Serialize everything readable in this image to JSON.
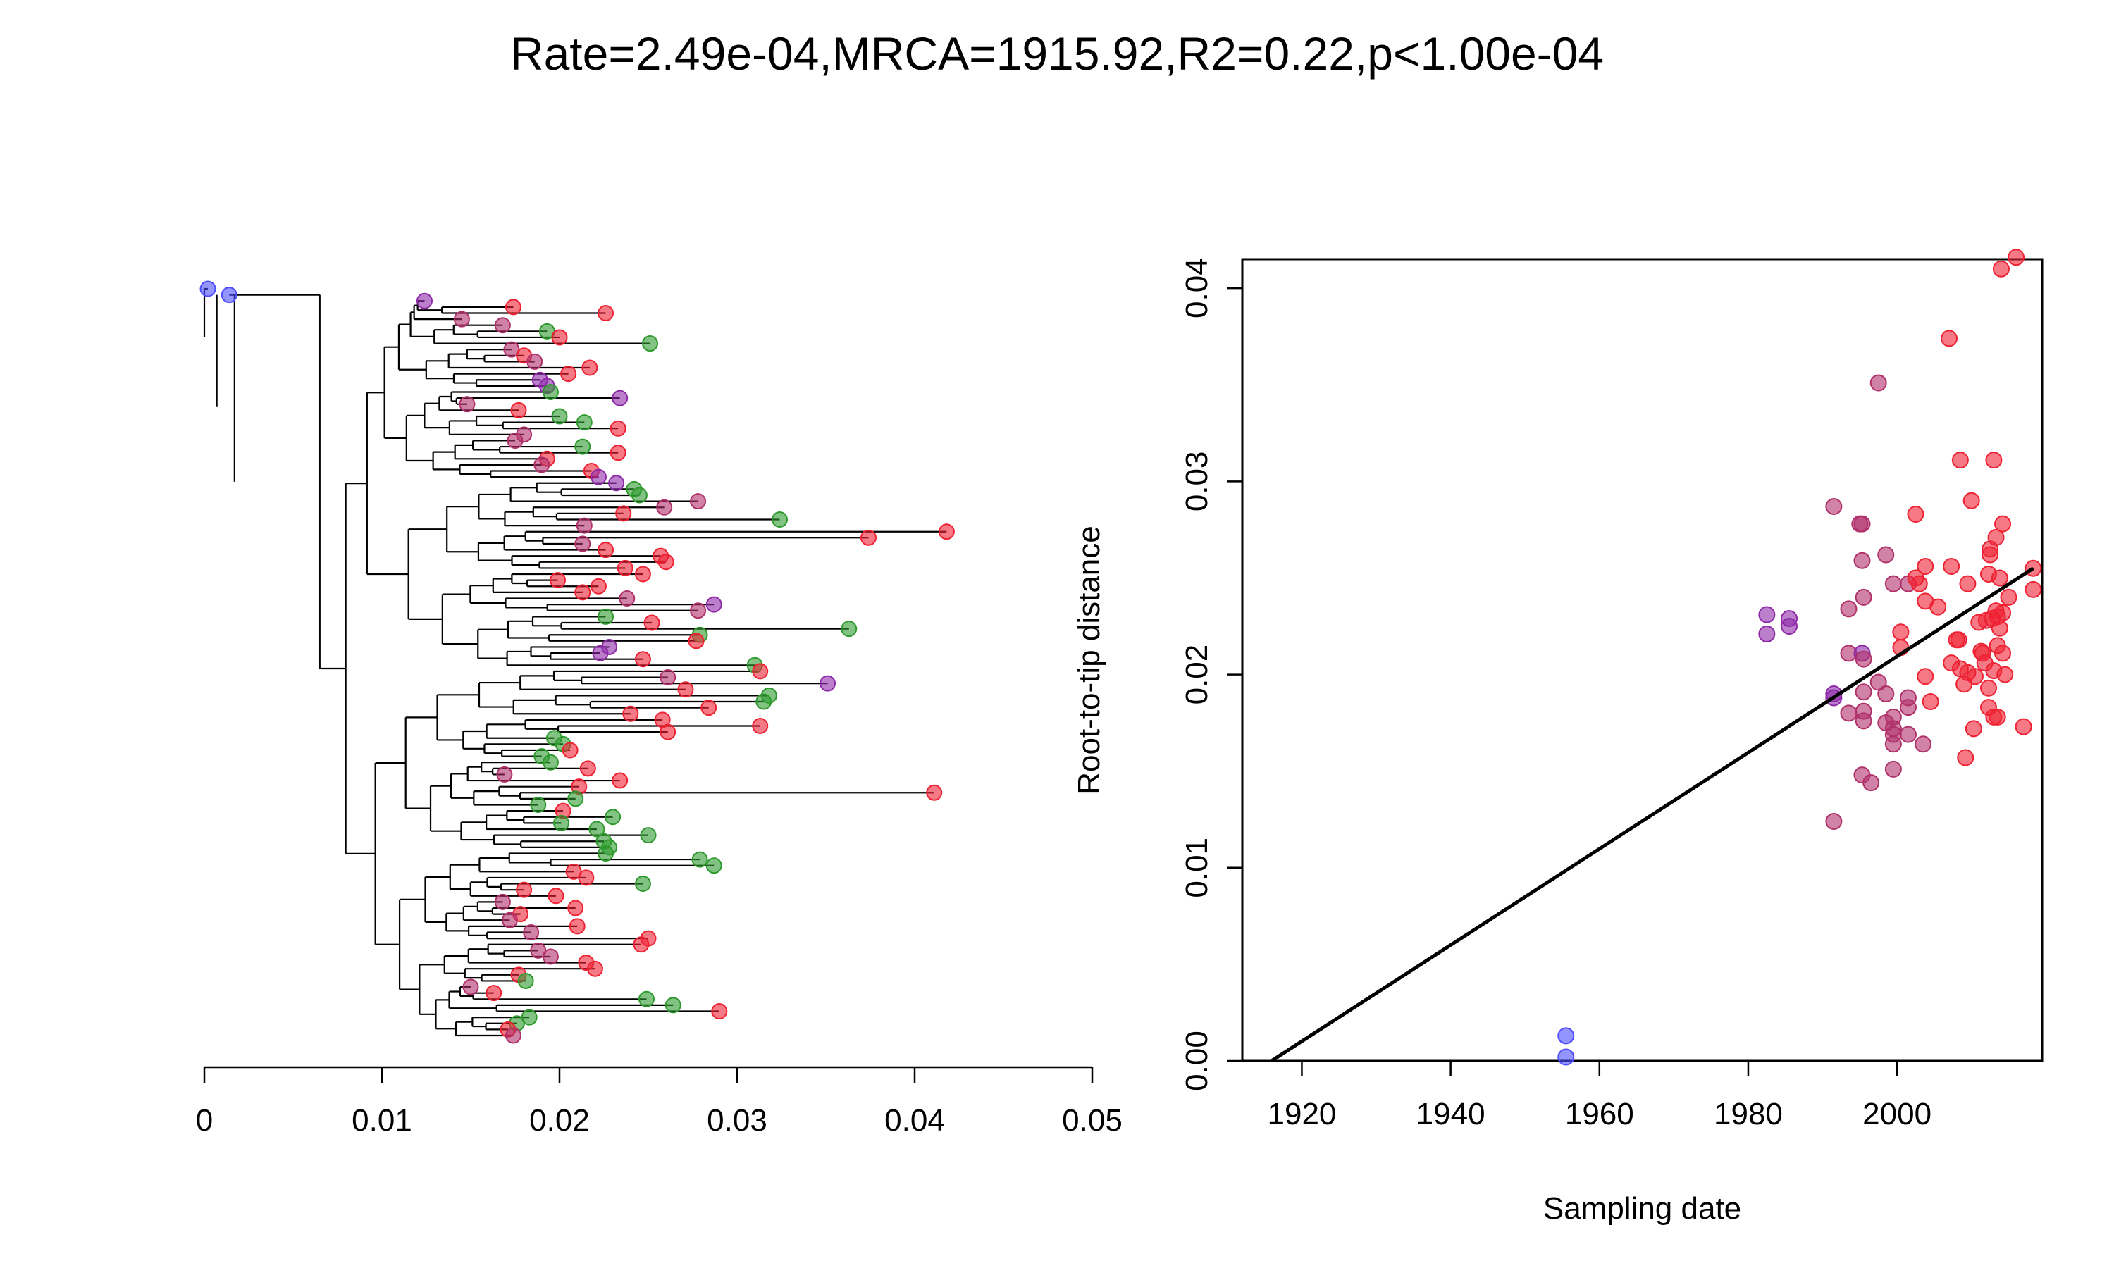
{
  "title": "Rate=2.49e-04,MRCA=1915.92,R2=0.22,p<1.00e-04",
  "colors": {
    "blue": "#4d4dff",
    "green": "#2e9a2e",
    "purple": "#8e2aa8",
    "magenta": "#b0306a",
    "red": "#ee2233"
  },
  "chart_data": [
    {
      "type": "tree",
      "xlim": [
        0,
        0.05
      ],
      "xticks": [
        "0",
        "0.01",
        "0.02",
        "0.03",
        "0.04",
        "0.05"
      ],
      "tips": [
        {
          "x": 0.0002,
          "c": "blue"
        },
        {
          "x": 0.0014,
          "c": "blue"
        },
        {
          "x": 0.0124,
          "c": "purple"
        },
        {
          "x": 0.0174,
          "c": "red"
        },
        {
          "x": 0.0226,
          "c": "red"
        },
        {
          "x": 0.0145,
          "c": "magenta"
        },
        {
          "x": 0.0168,
          "c": "magenta"
        },
        {
          "x": 0.0193,
          "c": "green"
        },
        {
          "x": 0.02,
          "c": "red"
        },
        {
          "x": 0.0251,
          "c": "green"
        },
        {
          "x": 0.0173,
          "c": "magenta"
        },
        {
          "x": 0.018,
          "c": "red"
        },
        {
          "x": 0.0186,
          "c": "magenta"
        },
        {
          "x": 0.0217,
          "c": "red"
        },
        {
          "x": 0.0205,
          "c": "red"
        },
        {
          "x": 0.0189,
          "c": "purple"
        },
        {
          "x": 0.0193,
          "c": "purple"
        },
        {
          "x": 0.0195,
          "c": "green"
        },
        {
          "x": 0.0234,
          "c": "purple"
        },
        {
          "x": 0.0148,
          "c": "magenta"
        },
        {
          "x": 0.0177,
          "c": "red"
        },
        {
          "x": 0.02,
          "c": "green"
        },
        {
          "x": 0.0214,
          "c": "green"
        },
        {
          "x": 0.0233,
          "c": "red"
        },
        {
          "x": 0.018,
          "c": "magenta"
        },
        {
          "x": 0.0175,
          "c": "magenta"
        },
        {
          "x": 0.0213,
          "c": "green"
        },
        {
          "x": 0.0233,
          "c": "red"
        },
        {
          "x": 0.0193,
          "c": "red"
        },
        {
          "x": 0.019,
          "c": "magenta"
        },
        {
          "x": 0.0218,
          "c": "red"
        },
        {
          "x": 0.0222,
          "c": "purple"
        },
        {
          "x": 0.0232,
          "c": "purple"
        },
        {
          "x": 0.0242,
          "c": "green"
        },
        {
          "x": 0.0245,
          "c": "green"
        },
        {
          "x": 0.0278,
          "c": "magenta"
        },
        {
          "x": 0.0259,
          "c": "magenta"
        },
        {
          "x": 0.0236,
          "c": "red"
        },
        {
          "x": 0.0324,
          "c": "green"
        },
        {
          "x": 0.0214,
          "c": "magenta"
        },
        {
          "x": 0.0418,
          "c": "red"
        },
        {
          "x": 0.0374,
          "c": "red"
        },
        {
          "x": 0.0213,
          "c": "magenta"
        },
        {
          "x": 0.0226,
          "c": "red"
        },
        {
          "x": 0.0257,
          "c": "red"
        },
        {
          "x": 0.026,
          "c": "red"
        },
        {
          "x": 0.0237,
          "c": "red"
        },
        {
          "x": 0.0247,
          "c": "red"
        },
        {
          "x": 0.0199,
          "c": "red"
        },
        {
          "x": 0.0222,
          "c": "red"
        },
        {
          "x": 0.0213,
          "c": "red"
        },
        {
          "x": 0.0238,
          "c": "magenta"
        },
        {
          "x": 0.0287,
          "c": "purple"
        },
        {
          "x": 0.0278,
          "c": "magenta"
        },
        {
          "x": 0.0226,
          "c": "green"
        },
        {
          "x": 0.0252,
          "c": "red"
        },
        {
          "x": 0.0363,
          "c": "green"
        },
        {
          "x": 0.0279,
          "c": "green"
        },
        {
          "x": 0.0277,
          "c": "red"
        },
        {
          "x": 0.0228,
          "c": "purple"
        },
        {
          "x": 0.0223,
          "c": "purple"
        },
        {
          "x": 0.0247,
          "c": "red"
        },
        {
          "x": 0.031,
          "c": "green"
        },
        {
          "x": 0.0313,
          "c": "red"
        },
        {
          "x": 0.0261,
          "c": "magenta"
        },
        {
          "x": 0.0351,
          "c": "purple"
        },
        {
          "x": 0.0271,
          "c": "red"
        },
        {
          "x": 0.0318,
          "c": "green"
        },
        {
          "x": 0.0315,
          "c": "green"
        },
        {
          "x": 0.0284,
          "c": "red"
        },
        {
          "x": 0.024,
          "c": "red"
        },
        {
          "x": 0.0258,
          "c": "red"
        },
        {
          "x": 0.0313,
          "c": "red"
        },
        {
          "x": 0.0261,
          "c": "red"
        },
        {
          "x": 0.0197,
          "c": "green"
        },
        {
          "x": 0.0202,
          "c": "green"
        },
        {
          "x": 0.0206,
          "c": "red"
        },
        {
          "x": 0.019,
          "c": "green"
        },
        {
          "x": 0.0195,
          "c": "green"
        },
        {
          "x": 0.0216,
          "c": "red"
        },
        {
          "x": 0.0169,
          "c": "magenta"
        },
        {
          "x": 0.0234,
          "c": "red"
        },
        {
          "x": 0.0211,
          "c": "red"
        },
        {
          "x": 0.0411,
          "c": "red"
        },
        {
          "x": 0.0209,
          "c": "green"
        },
        {
          "x": 0.0188,
          "c": "green"
        },
        {
          "x": 0.0202,
          "c": "red"
        },
        {
          "x": 0.023,
          "c": "green"
        },
        {
          "x": 0.0201,
          "c": "green"
        },
        {
          "x": 0.0221,
          "c": "green"
        },
        {
          "x": 0.025,
          "c": "green"
        },
        {
          "x": 0.0225,
          "c": "green"
        },
        {
          "x": 0.0228,
          "c": "green"
        },
        {
          "x": 0.0226,
          "c": "green"
        },
        {
          "x": 0.0279,
          "c": "green"
        },
        {
          "x": 0.0287,
          "c": "green"
        },
        {
          "x": 0.0208,
          "c": "red"
        },
        {
          "x": 0.0215,
          "c": "red"
        },
        {
          "x": 0.0247,
          "c": "green"
        },
        {
          "x": 0.018,
          "c": "red"
        },
        {
          "x": 0.0198,
          "c": "red"
        },
        {
          "x": 0.0168,
          "c": "magenta"
        },
        {
          "x": 0.0209,
          "c": "red"
        },
        {
          "x": 0.0178,
          "c": "red"
        },
        {
          "x": 0.0172,
          "c": "magenta"
        },
        {
          "x": 0.021,
          "c": "red"
        },
        {
          "x": 0.0184,
          "c": "magenta"
        },
        {
          "x": 0.025,
          "c": "red"
        },
        {
          "x": 0.0246,
          "c": "red"
        },
        {
          "x": 0.0188,
          "c": "magenta"
        },
        {
          "x": 0.0195,
          "c": "magenta"
        },
        {
          "x": 0.0215,
          "c": "red"
        },
        {
          "x": 0.022,
          "c": "red"
        },
        {
          "x": 0.0177,
          "c": "red"
        },
        {
          "x": 0.0181,
          "c": "green"
        },
        {
          "x": 0.015,
          "c": "magenta"
        },
        {
          "x": 0.0163,
          "c": "red"
        },
        {
          "x": 0.0249,
          "c": "green"
        },
        {
          "x": 0.0264,
          "c": "green"
        },
        {
          "x": 0.029,
          "c": "red"
        },
        {
          "x": 0.0183,
          "c": "green"
        },
        {
          "x": 0.0176,
          "c": "green"
        },
        {
          "x": 0.0171,
          "c": "red"
        },
        {
          "x": 0.0174,
          "c": "magenta"
        }
      ]
    },
    {
      "type": "scatter",
      "xlabel": "Sampling date",
      "ylabel": "Root-to-tip distance",
      "xlim": [
        1912,
        2019.5
      ],
      "ylim": [
        0,
        0.0415
      ],
      "xticks": [
        1920,
        1940,
        1960,
        1980,
        2000
      ],
      "yticks": [
        0.0,
        0.01,
        0.02,
        0.03,
        0.04
      ],
      "ytick_labels": [
        "0.00",
        "0.01",
        "0.02",
        "0.03",
        "0.04"
      ],
      "regression": {
        "x0": 1915.92,
        "y0": 0.0,
        "x1": 2018.3,
        "y1": 0.0255
      },
      "points": [
        {
          "x": 1955.5,
          "y": 0.0013,
          "c": "blue"
        },
        {
          "x": 1955.5,
          "y": 0.0002,
          "c": "blue"
        },
        {
          "x": 1982.5,
          "y": 0.0231,
          "c": "purple"
        },
        {
          "x": 1982.5,
          "y": 0.0221,
          "c": "purple"
        },
        {
          "x": 1985.5,
          "y": 0.0229,
          "c": "purple"
        },
        {
          "x": 1985.5,
          "y": 0.0225,
          "c": "purple"
        },
        {
          "x": 1991.5,
          "y": 0.0287,
          "c": "magenta"
        },
        {
          "x": 1991.5,
          "y": 0.019,
          "c": "purple"
        },
        {
          "x": 1991.5,
          "y": 0.0188,
          "c": "purple"
        },
        {
          "x": 1991.5,
          "y": 0.0124,
          "c": "magenta"
        },
        {
          "x": 1993.5,
          "y": 0.0234,
          "c": "magenta"
        },
        {
          "x": 1993.5,
          "y": 0.0211,
          "c": "magenta"
        },
        {
          "x": 1993.5,
          "y": 0.018,
          "c": "magenta"
        },
        {
          "x": 1995.0,
          "y": 0.0278,
          "c": "magenta"
        },
        {
          "x": 1995.3,
          "y": 0.0278,
          "c": "magenta"
        },
        {
          "x": 1995.3,
          "y": 0.0259,
          "c": "magenta"
        },
        {
          "x": 1995.5,
          "y": 0.024,
          "c": "magenta"
        },
        {
          "x": 1995.3,
          "y": 0.0211,
          "c": "purple"
        },
        {
          "x": 1995.5,
          "y": 0.0208,
          "c": "magenta"
        },
        {
          "x": 1995.5,
          "y": 0.0191,
          "c": "magenta"
        },
        {
          "x": 1995.5,
          "y": 0.0176,
          "c": "magenta"
        },
        {
          "x": 1995.5,
          "y": 0.0181,
          "c": "magenta"
        },
        {
          "x": 1995.3,
          "y": 0.0148,
          "c": "magenta"
        },
        {
          "x": 1996.5,
          "y": 0.0144,
          "c": "magenta"
        },
        {
          "x": 1997.5,
          "y": 0.0351,
          "c": "magenta"
        },
        {
          "x": 1997.5,
          "y": 0.0196,
          "c": "magenta"
        },
        {
          "x": 1998.5,
          "y": 0.0262,
          "c": "magenta"
        },
        {
          "x": 1998.5,
          "y": 0.019,
          "c": "magenta"
        },
        {
          "x": 1998.5,
          "y": 0.0175,
          "c": "magenta"
        },
        {
          "x": 1999.5,
          "y": 0.0247,
          "c": "magenta"
        },
        {
          "x": 1999.5,
          "y": 0.0178,
          "c": "magenta"
        },
        {
          "x": 1999.5,
          "y": 0.0172,
          "c": "magenta"
        },
        {
          "x": 1999.5,
          "y": 0.0169,
          "c": "magenta"
        },
        {
          "x": 1999.5,
          "y": 0.0164,
          "c": "magenta"
        },
        {
          "x": 1999.5,
          "y": 0.0151,
          "c": "magenta"
        },
        {
          "x": 2000.5,
          "y": 0.0222,
          "c": "red"
        },
        {
          "x": 2000.5,
          "y": 0.0214,
          "c": "red"
        },
        {
          "x": 2001.5,
          "y": 0.0247,
          "c": "magenta"
        },
        {
          "x": 2001.5,
          "y": 0.0188,
          "c": "magenta"
        },
        {
          "x": 2001.5,
          "y": 0.0183,
          "c": "magenta"
        },
        {
          "x": 2001.5,
          "y": 0.0169,
          "c": "magenta"
        },
        {
          "x": 2002.5,
          "y": 0.0283,
          "c": "red"
        },
        {
          "x": 2002.5,
          "y": 0.025,
          "c": "red"
        },
        {
          "x": 2003.0,
          "y": 0.0247,
          "c": "red"
        },
        {
          "x": 2003.5,
          "y": 0.0164,
          "c": "magenta"
        },
        {
          "x": 2003.8,
          "y": 0.0256,
          "c": "red"
        },
        {
          "x": 2003.8,
          "y": 0.0238,
          "c": "red"
        },
        {
          "x": 2003.8,
          "y": 0.0199,
          "c": "red"
        },
        {
          "x": 2004.5,
          "y": 0.0186,
          "c": "red"
        },
        {
          "x": 2005.5,
          "y": 0.0235,
          "c": "red"
        },
        {
          "x": 2007.0,
          "y": 0.0374,
          "c": "red"
        },
        {
          "x": 2007.3,
          "y": 0.0256,
          "c": "red"
        },
        {
          "x": 2007.3,
          "y": 0.0206,
          "c": "red"
        },
        {
          "x": 2008.0,
          "y": 0.0218,
          "c": "red"
        },
        {
          "x": 2008.3,
          "y": 0.0218,
          "c": "red"
        },
        {
          "x": 2008.5,
          "y": 0.0311,
          "c": "red"
        },
        {
          "x": 2008.5,
          "y": 0.0203,
          "c": "red"
        },
        {
          "x": 2009.0,
          "y": 0.0195,
          "c": "red"
        },
        {
          "x": 2009.2,
          "y": 0.0157,
          "c": "red"
        },
        {
          "x": 2009.5,
          "y": 0.0247,
          "c": "red"
        },
        {
          "x": 2009.5,
          "y": 0.0201,
          "c": "red"
        },
        {
          "x": 2010.0,
          "y": 0.029,
          "c": "red"
        },
        {
          "x": 2010.3,
          "y": 0.0172,
          "c": "red"
        },
        {
          "x": 2010.5,
          "y": 0.0199,
          "c": "red"
        },
        {
          "x": 2011.0,
          "y": 0.0227,
          "c": "red"
        },
        {
          "x": 2011.3,
          "y": 0.0212,
          "c": "red"
        },
        {
          "x": 2011.5,
          "y": 0.0211,
          "c": "red"
        },
        {
          "x": 2011.8,
          "y": 0.0206,
          "c": "red"
        },
        {
          "x": 2012.0,
          "y": 0.0228,
          "c": "red"
        },
        {
          "x": 2012.3,
          "y": 0.0252,
          "c": "red"
        },
        {
          "x": 2012.3,
          "y": 0.0193,
          "c": "red"
        },
        {
          "x": 2012.3,
          "y": 0.0183,
          "c": "red"
        },
        {
          "x": 2012.5,
          "y": 0.0262,
          "c": "red"
        },
        {
          "x": 2012.5,
          "y": 0.0265,
          "c": "red"
        },
        {
          "x": 2012.8,
          "y": 0.0229,
          "c": "red"
        },
        {
          "x": 2013.0,
          "y": 0.0311,
          "c": "red"
        },
        {
          "x": 2013.0,
          "y": 0.0202,
          "c": "red"
        },
        {
          "x": 2013.0,
          "y": 0.0178,
          "c": "red"
        },
        {
          "x": 2013.3,
          "y": 0.0271,
          "c": "red"
        },
        {
          "x": 2013.3,
          "y": 0.0233,
          "c": "red"
        },
        {
          "x": 2013.5,
          "y": 0.023,
          "c": "red"
        },
        {
          "x": 2013.5,
          "y": 0.0215,
          "c": "red"
        },
        {
          "x": 2013.5,
          "y": 0.0178,
          "c": "red"
        },
        {
          "x": 2013.8,
          "y": 0.025,
          "c": "red"
        },
        {
          "x": 2013.8,
          "y": 0.0224,
          "c": "red"
        },
        {
          "x": 2014.0,
          "y": 0.041,
          "c": "red"
        },
        {
          "x": 2014.2,
          "y": 0.0278,
          "c": "red"
        },
        {
          "x": 2014.2,
          "y": 0.0232,
          "c": "red"
        },
        {
          "x": 2014.2,
          "y": 0.0211,
          "c": "red"
        },
        {
          "x": 2014.5,
          "y": 0.02,
          "c": "red"
        },
        {
          "x": 2015.0,
          "y": 0.024,
          "c": "red"
        },
        {
          "x": 2016.0,
          "y": 0.0416,
          "c": "red"
        },
        {
          "x": 2017.0,
          "y": 0.0173,
          "c": "red"
        },
        {
          "x": 2018.3,
          "y": 0.0255,
          "c": "red"
        },
        {
          "x": 2018.3,
          "y": 0.0244,
          "c": "red"
        }
      ]
    }
  ]
}
